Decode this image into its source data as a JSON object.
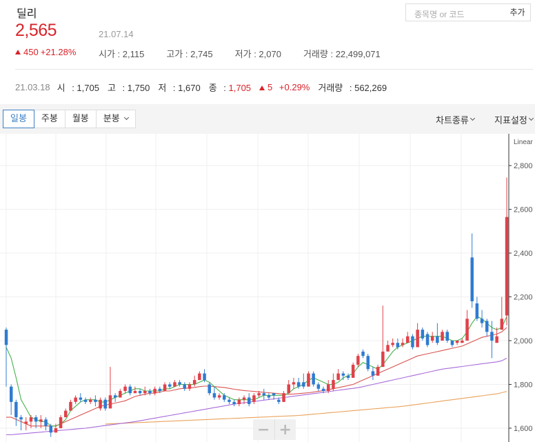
{
  "stock": {
    "name": "딜리",
    "price": "2,565",
    "date": "21.07.14",
    "change_amount": "450",
    "change_pct": "+21.28%",
    "stats": [
      {
        "label": "시가",
        "value": "2,115"
      },
      {
        "label": "고가",
        "value": "2,745"
      },
      {
        "label": "저가",
        "value": "2,070"
      },
      {
        "label": "거래량",
        "value": "22,499,071"
      }
    ]
  },
  "search": {
    "placeholder": "종목명 or 코드",
    "add_label": "추가"
  },
  "prev_day": {
    "date": "21.03.18",
    "open_label": "시",
    "open": "1,705",
    "high_label": "고",
    "high": "1,750",
    "low_label": "저",
    "low": "1,670",
    "close_label": "종",
    "close": "1,705",
    "change": "5",
    "change_pct": "+0.29%",
    "volume_label": "거래량",
    "volume": "562,269"
  },
  "toolbar": {
    "tabs": [
      "일봉",
      "주봉",
      "월봉",
      "분봉"
    ],
    "active_tab": "일봉",
    "chart_type_label": "차트종류",
    "indicator_label": "지표설정"
  },
  "colors": {
    "up": "#e0414a",
    "down": "#2f7bd1",
    "ma5": "#43b14a",
    "ma20": "#d9534f",
    "ma60": "#a86ad9",
    "ma120": "#e9a15a",
    "accent": "#d8232a"
  },
  "chart_data": {
    "type": "candlestick",
    "scale_label": "Linear",
    "ylim": [
      1540,
      2920
    ],
    "y_ticks": [
      "1,600",
      "1,800",
      "2,000",
      "2,200",
      "2,400",
      "2,600",
      "2,800"
    ],
    "y_tick_values": [
      1600,
      1800,
      2000,
      2200,
      2400,
      2600,
      2800
    ],
    "candles": [
      [
        2050,
        1980,
        1790,
        2060
      ],
      [
        1790,
        1720,
        1660,
        1800
      ],
      [
        1720,
        1650,
        1610,
        1730
      ],
      [
        1650,
        1640,
        1590,
        1660
      ],
      [
        1620,
        1630,
        1590,
        1650
      ],
      [
        1630,
        1650,
        1600,
        1660
      ],
      [
        1650,
        1630,
        1600,
        1660
      ],
      [
        1630,
        1640,
        1600,
        1660
      ],
      [
        1640,
        1610,
        1590,
        1650
      ],
      [
        1610,
        1580,
        1560,
        1620
      ],
      [
        1580,
        1600,
        1580,
        1620
      ],
      [
        1600,
        1650,
        1600,
        1660
      ],
      [
        1650,
        1680,
        1650,
        1690
      ],
      [
        1680,
        1720,
        1680,
        1730
      ],
      [
        1720,
        1740,
        1710,
        1750
      ],
      [
        1740,
        1730,
        1720,
        1760
      ],
      [
        1730,
        1720,
        1710,
        1740
      ],
      [
        1720,
        1730,
        1710,
        1740
      ],
      [
        1730,
        1720,
        1700,
        1750
      ],
      [
        1690,
        1730,
        1680,
        1740
      ],
      [
        1730,
        1690,
        1680,
        1740
      ],
      [
        1690,
        1750,
        1690,
        1880
      ],
      [
        1750,
        1740,
        1720,
        1760
      ],
      [
        1740,
        1770,
        1740,
        1780
      ],
      [
        1770,
        1790,
        1760,
        1800
      ],
      [
        1790,
        1760,
        1750,
        1800
      ],
      [
        1760,
        1770,
        1760,
        1790
      ],
      [
        1770,
        1760,
        1750,
        1780
      ],
      [
        1760,
        1770,
        1750,
        1790
      ],
      [
        1770,
        1760,
        1750,
        1780
      ],
      [
        1760,
        1780,
        1750,
        1790
      ],
      [
        1780,
        1770,
        1760,
        1790
      ],
      [
        1770,
        1800,
        1770,
        1810
      ],
      [
        1800,
        1790,
        1780,
        1810
      ],
      [
        1790,
        1810,
        1790,
        1820
      ],
      [
        1810,
        1800,
        1790,
        1820
      ],
      [
        1800,
        1780,
        1770,
        1810
      ],
      [
        1780,
        1800,
        1770,
        1810
      ],
      [
        1800,
        1820,
        1790,
        1840
      ],
      [
        1820,
        1850,
        1820,
        1860
      ],
      [
        1850,
        1820,
        1810,
        1870
      ],
      [
        1800,
        1760,
        1750,
        1810
      ],
      [
        1760,
        1740,
        1730,
        1790
      ],
      [
        1740,
        1750,
        1730,
        1760
      ],
      [
        1750,
        1730,
        1720,
        1760
      ],
      [
        1730,
        1720,
        1710,
        1740
      ],
      [
        1720,
        1710,
        1700,
        1730
      ],
      [
        1710,
        1730,
        1700,
        1740
      ],
      [
        1730,
        1740,
        1710,
        1750
      ],
      [
        1740,
        1710,
        1700,
        1760
      ],
      [
        1720,
        1750,
        1710,
        1760
      ],
      [
        1750,
        1760,
        1740,
        1770
      ],
      [
        1760,
        1750,
        1730,
        1780
      ],
      [
        1750,
        1740,
        1730,
        1760
      ],
      [
        1760,
        1750,
        1730,
        1760
      ],
      [
        1730,
        1720,
        1710,
        1740
      ],
      [
        1720,
        1760,
        1720,
        1770
      ],
      [
        1760,
        1800,
        1760,
        1820
      ],
      [
        1800,
        1810,
        1780,
        1830
      ],
      [
        1810,
        1790,
        1780,
        1830
      ],
      [
        1810,
        1790,
        1780,
        1850
      ],
      [
        1790,
        1850,
        1790,
        1860
      ],
      [
        1850,
        1800,
        1790,
        1860
      ],
      [
        1800,
        1780,
        1770,
        1810
      ],
      [
        1780,
        1770,
        1760,
        1790
      ],
      [
        1770,
        1800,
        1760,
        1820
      ],
      [
        1780,
        1820,
        1770,
        1850
      ],
      [
        1820,
        1850,
        1820,
        1870
      ],
      [
        1850,
        1840,
        1820,
        1860
      ],
      [
        1840,
        1830,
        1820,
        1850
      ],
      [
        1830,
        1890,
        1830,
        1900
      ],
      [
        1890,
        1930,
        1880,
        1940
      ],
      [
        1950,
        1930,
        1920,
        1960
      ],
      [
        1930,
        1870,
        1860,
        1940
      ],
      [
        1860,
        1840,
        1820,
        1880
      ],
      [
        1840,
        1880,
        1840,
        1890
      ],
      [
        1880,
        1950,
        1880,
        2160
      ],
      [
        1950,
        1980,
        1950,
        2000
      ],
      [
        1980,
        1990,
        1970,
        2010
      ],
      [
        1990,
        1970,
        1960,
        2010
      ],
      [
        1980,
        1990,
        1970,
        2010
      ],
      [
        1990,
        2020,
        1990,
        2040
      ],
      [
        2020,
        1970,
        1960,
        2030
      ],
      [
        1970,
        2050,
        1970,
        2080
      ],
      [
        2050,
        2010,
        2000,
        2060
      ],
      [
        2030,
        1980,
        1970,
        2040
      ],
      [
        2000,
        2020,
        1990,
        2040
      ],
      [
        2020,
        1990,
        1980,
        2080
      ],
      [
        2000,
        2040,
        2000,
        2050
      ],
      [
        2040,
        2000,
        1990,
        2050
      ],
      [
        2000,
        1980,
        1970,
        2000
      ],
      [
        1990,
        2000,
        1980,
        2000
      ],
      [
        1990,
        2000,
        1990,
        2010
      ],
      [
        2000,
        2100,
        2000,
        2140
      ],
      [
        2380,
        2180,
        2150,
        2490
      ],
      [
        2170,
        2100,
        2090,
        2200
      ],
      [
        2100,
        2080,
        2060,
        2140
      ],
      [
        2090,
        2040,
        2020,
        2100
      ],
      [
        2040,
        2000,
        1920,
        2090
      ],
      [
        1990,
        2020,
        1990,
        2060
      ],
      [
        2050,
        2100,
        2050,
        2200
      ],
      [
        2115,
        2565,
        2070,
        2745
      ]
    ],
    "ma5": [
      1970,
      1920,
      1830,
      1730,
      1690,
      1650,
      1640,
      1630,
      1630,
      1610,
      1610,
      1620,
      1640,
      1680,
      1700,
      1720,
      1730,
      1730,
      1730,
      1720,
      1720,
      1730,
      1740,
      1750,
      1760,
      1770,
      1780,
      1780,
      1770,
      1770,
      1770,
      1770,
      1780,
      1780,
      1790,
      1800,
      1800,
      1800,
      1800,
      1810,
      1820,
      1810,
      1790,
      1770,
      1750,
      1740,
      1730,
      1730,
      1730,
      1730,
      1730,
      1740,
      1750,
      1750,
      1750,
      1750,
      1750,
      1760,
      1780,
      1790,
      1800,
      1820,
      1830,
      1820,
      1810,
      1800,
      1800,
      1810,
      1830,
      1840,
      1850,
      1880,
      1900,
      1890,
      1880,
      1870,
      1890,
      1920,
      1950,
      1970,
      1980,
      1990,
      2000,
      2010,
      2020,
      2020,
      2020,
      2020,
      2020,
      2010,
      2000,
      2000,
      2010,
      2040,
      2080,
      2110,
      2100,
      2080,
      2060,
      2050,
      2060,
      2110
    ],
    "ma20": [
      1650,
      1650,
      1640,
      1630,
      1620,
      1610,
      1610,
      1610,
      1610,
      1610,
      1610,
      1620,
      1630,
      1640,
      1650,
      1660,
      1670,
      1680,
      1690,
      1700,
      1705,
      1710,
      1715,
      1720,
      1725,
      1735,
      1745,
      1750,
      1755,
      1760,
      1760,
      1765,
      1770,
      1770,
      1775,
      1780,
      1782,
      1784,
      1786,
      1790,
      1792,
      1792,
      1790,
      1788,
      1786,
      1782,
      1778,
      1775,
      1772,
      1770,
      1768,
      1766,
      1764,
      1762,
      1760,
      1758,
      1756,
      1755,
      1756,
      1758,
      1760,
      1762,
      1765,
      1768,
      1772,
      1776,
      1780,
      1785,
      1790,
      1795,
      1800,
      1810,
      1820,
      1830,
      1840,
      1850,
      1860,
      1870,
      1880,
      1890,
      1900,
      1910,
      1920,
      1930,
      1935,
      1940,
      1945,
      1950,
      1955,
      1960,
      1965,
      1970,
      1975,
      1985,
      1995,
      2005,
      2015,
      2020,
      2025,
      2030,
      2040,
      2060
    ],
    "ma60": [
      1570,
      1570,
      1572,
      1574,
      1576,
      1578,
      1580,
      1582,
      1584,
      1586,
      1588,
      1590,
      1592,
      1594,
      1596,
      1598,
      1600,
      1603,
      1606,
      1609,
      1612,
      1615,
      1618,
      1621,
      1624,
      1627,
      1630,
      1634,
      1638,
      1642,
      1646,
      1650,
      1654,
      1658,
      1662,
      1666,
      1670,
      1674,
      1678,
      1682,
      1686,
      1690,
      1694,
      1698,
      1702,
      1706,
      1710,
      1713,
      1716,
      1719,
      1722,
      1725,
      1728,
      1731,
      1734,
      1737,
      1740,
      1743,
      1746,
      1749,
      1752,
      1755,
      1758,
      1761,
      1764,
      1767,
      1770,
      1773,
      1776,
      1779,
      1782,
      1785,
      1790,
      1795,
      1800,
      1805,
      1810,
      1815,
      1820,
      1825,
      1830,
      1835,
      1840,
      1845,
      1850,
      1855,
      1860,
      1865,
      1870,
      1873,
      1876,
      1879,
      1882,
      1885,
      1888,
      1891,
      1894,
      1897,
      1900,
      1903,
      1908,
      1920
    ],
    "ma120": [
      1600,
      1600,
      1601,
      1602,
      1603,
      1604,
      1605,
      1606,
      1607,
      1608,
      1609,
      1610,
      1611,
      1612,
      1613,
      1614,
      1615,
      1616,
      1617,
      1618,
      1619,
      1620,
      1621,
      1622,
      1623,
      1624,
      1625,
      1626,
      1627,
      1628,
      1629,
      1630,
      1631,
      1632,
      1633,
      1634,
      1635,
      1636,
      1637,
      1638,
      1639,
      1640,
      1641,
      1642,
      1643,
      1644,
      1645,
      1646,
      1647,
      1648,
      1649,
      1650,
      1651,
      1652,
      1653,
      1654,
      1655,
      1656,
      1657,
      1658,
      1660,
      1662,
      1664,
      1666,
      1668,
      1670,
      1672,
      1674,
      1676,
      1678,
      1680,
      1682,
      1684,
      1686,
      1688,
      1690,
      1692,
      1694,
      1696,
      1698,
      1700,
      1703,
      1706,
      1709,
      1712,
      1715,
      1718,
      1721,
      1724,
      1727,
      1730,
      1733,
      1736,
      1739,
      1742,
      1745,
      1748,
      1751,
      1754,
      1757,
      1762,
      1768
    ]
  }
}
